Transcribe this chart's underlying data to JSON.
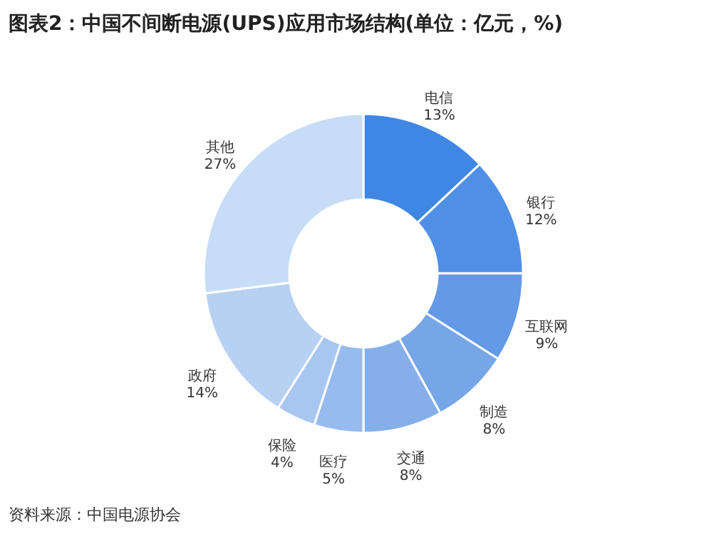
{
  "chart_data": {
    "type": "donut",
    "title": "图表2：中国不间断电源(UPS)应用市场结构(单位：亿元，%)",
    "categories": [
      "电信",
      "银行",
      "互联网",
      "制造",
      "交通",
      "医疗",
      "保险",
      "政府",
      "其他"
    ],
    "values": [
      13,
      12,
      9,
      8,
      8,
      5,
      4,
      14,
      27
    ],
    "value_labels": [
      "13%",
      "12%",
      "9%",
      "8%",
      "8%",
      "5%",
      "4%",
      "14%",
      "27%"
    ],
    "colors": [
      "#3f87e3",
      "#4f90e6",
      "#6399e6",
      "#76a5e8",
      "#86afea",
      "#97bbee",
      "#a7c6f0",
      "#b7d1f3",
      "#c7dcf6"
    ],
    "annotations": [
      "资料来源：中国电源协会"
    ]
  }
}
